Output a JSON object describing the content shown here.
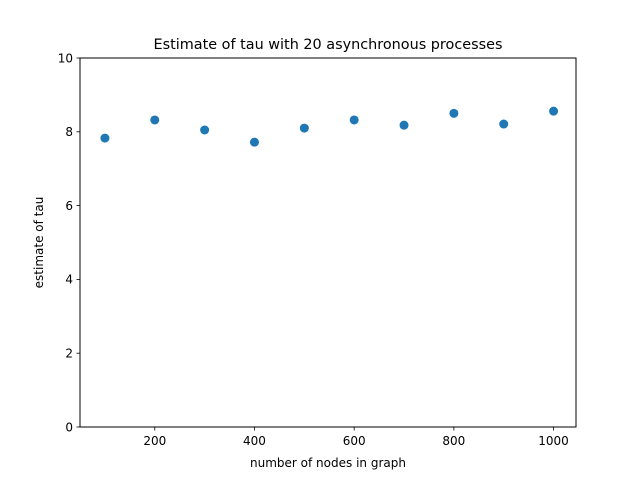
{
  "chart_data": {
    "type": "scatter",
    "title": "Estimate of tau with 20 asynchronous processes",
    "xlabel": "number of nodes in graph",
    "ylabel": "estimate of tau",
    "xlim": [
      50,
      1045
    ],
    "ylim": [
      0,
      10
    ],
    "xticks": [
      200,
      400,
      600,
      800,
      1000
    ],
    "yticks": [
      0,
      2,
      4,
      6,
      8,
      10
    ],
    "grid": false,
    "series": [
      {
        "color": "#1f77b4",
        "x": [
          100,
          200,
          300,
          400,
          500,
          600,
          700,
          800,
          900,
          1000
        ],
        "y": [
          7.83,
          8.32,
          8.05,
          7.72,
          8.1,
          8.32,
          8.18,
          8.5,
          8.21,
          8.56
        ]
      }
    ]
  }
}
